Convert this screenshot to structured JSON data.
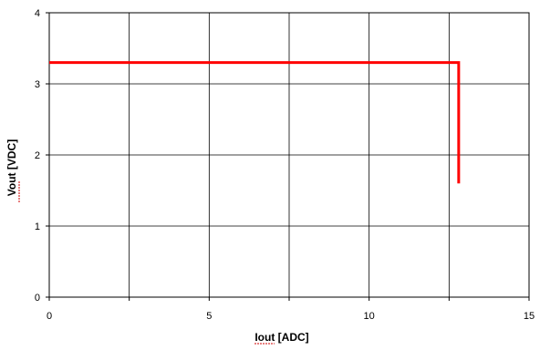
{
  "chart_data": {
    "type": "line",
    "title": "",
    "xlabel": "Iout [ADC]",
    "ylabel": "Vout [VDC]",
    "xlim": [
      0,
      15
    ],
    "ylim": [
      0,
      4
    ],
    "x_ticks": [
      0,
      5,
      10,
      15
    ],
    "y_ticks": [
      0,
      1,
      2,
      3,
      4
    ],
    "x_tick_labels": [
      "0",
      "5",
      "10",
      "15"
    ],
    "y_tick_labels": [
      "0",
      "1",
      "2",
      "3",
      "4"
    ],
    "grid": true,
    "legend": "none",
    "series": [
      {
        "color": "#ff0000",
        "x": [
          0,
          12.8,
          12.8
        ],
        "y": [
          3.3,
          3.3,
          1.6
        ]
      }
    ]
  }
}
